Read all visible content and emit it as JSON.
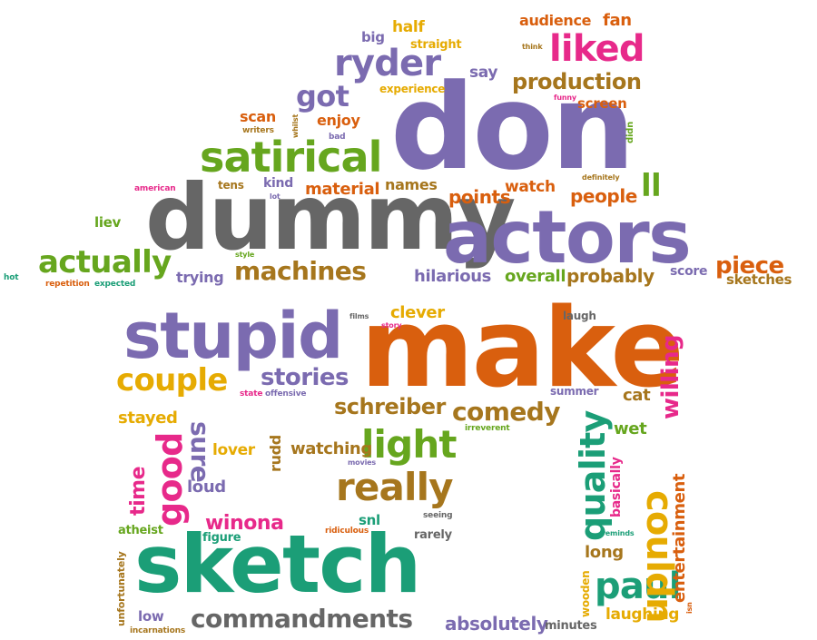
{
  "palette": {
    "purple": "#7b6bb0",
    "gray": "#666666",
    "orange": "#d95f0e",
    "green": "#66a61e",
    "teal": "#1b9e77",
    "magenta": "#e7298a",
    "gold": "#e6ab02",
    "brown": "#a6761d"
  },
  "words": [
    {
      "text": "don",
      "color": "purple"
    },
    {
      "text": "dummy",
      "color": "gray"
    },
    {
      "text": "actors",
      "color": "purple"
    },
    {
      "text": "make",
      "color": "orange"
    },
    {
      "text": "sketch",
      "color": "teal"
    },
    {
      "text": "stupid",
      "color": "purple"
    },
    {
      "text": "satirical",
      "color": "green"
    },
    {
      "text": "ryder",
      "color": "purple"
    },
    {
      "text": "liked",
      "color": "magenta"
    },
    {
      "text": "production",
      "color": "brown"
    },
    {
      "text": "got",
      "color": "purple"
    },
    {
      "text": "actually",
      "color": "green"
    },
    {
      "text": "machines",
      "color": "brown"
    },
    {
      "text": "couple",
      "color": "gold"
    },
    {
      "text": "stories",
      "color": "purple"
    },
    {
      "text": "schreiber",
      "color": "brown"
    },
    {
      "text": "comedy",
      "color": "brown"
    },
    {
      "text": "really",
      "color": "brown"
    },
    {
      "text": "light",
      "color": "green"
    },
    {
      "text": "commandments",
      "color": "gray"
    },
    {
      "text": "absolutely",
      "color": "purple"
    },
    {
      "text": "paul",
      "color": "teal"
    },
    {
      "text": "piece",
      "color": "orange"
    },
    {
      "text": "hilarious",
      "color": "purple"
    },
    {
      "text": "overall",
      "color": "green"
    },
    {
      "text": "probably",
      "color": "brown"
    },
    {
      "text": "people",
      "color": "orange"
    },
    {
      "text": "points",
      "color": "orange"
    },
    {
      "text": "watch",
      "color": "orange"
    },
    {
      "text": "material",
      "color": "orange"
    },
    {
      "text": "names",
      "color": "brown"
    },
    {
      "text": "enjoy",
      "color": "orange"
    },
    {
      "text": "scan",
      "color": "orange"
    },
    {
      "text": "half",
      "color": "gold"
    },
    {
      "text": "big",
      "color": "purple"
    },
    {
      "text": "straight",
      "color": "gold"
    },
    {
      "text": "audience",
      "color": "orange"
    },
    {
      "text": "fan",
      "color": "orange"
    },
    {
      "text": "say",
      "color": "purple"
    },
    {
      "text": "experience",
      "color": "gold"
    },
    {
      "text": "screen",
      "color": "orange"
    },
    {
      "text": "ll",
      "color": "green"
    },
    {
      "text": "kind",
      "color": "purple"
    },
    {
      "text": "tens",
      "color": "brown"
    },
    {
      "text": "liev",
      "color": "green"
    },
    {
      "text": "trying",
      "color": "purple"
    },
    {
      "text": "sketches",
      "color": "brown"
    },
    {
      "text": "score",
      "color": "purple"
    },
    {
      "text": "clever",
      "color": "gold"
    },
    {
      "text": "laugh",
      "color": "gray"
    },
    {
      "text": "stayed",
      "color": "gold"
    },
    {
      "text": "lover",
      "color": "gold"
    },
    {
      "text": "watching",
      "color": "brown"
    },
    {
      "text": "loud",
      "color": "purple"
    },
    {
      "text": "winona",
      "color": "magenta"
    },
    {
      "text": "snl",
      "color": "teal"
    },
    {
      "text": "rarely",
      "color": "gray"
    },
    {
      "text": "figure",
      "color": "teal"
    },
    {
      "text": "atheist",
      "color": "green"
    },
    {
      "text": "low",
      "color": "purple"
    },
    {
      "text": "long",
      "color": "brown"
    },
    {
      "text": "laughing",
      "color": "gold"
    },
    {
      "text": "minutes",
      "color": "gray"
    },
    {
      "text": "cat",
      "color": "brown"
    },
    {
      "text": "wet",
      "color": "green"
    },
    {
      "text": "summer",
      "color": "purple"
    },
    {
      "text": "hot",
      "color": "teal"
    },
    {
      "text": "repetition",
      "color": "orange"
    },
    {
      "text": "expected",
      "color": "teal"
    },
    {
      "text": "american",
      "color": "magenta"
    },
    {
      "text": "lot",
      "color": "purple"
    },
    {
      "text": "style",
      "color": "green"
    },
    {
      "text": "writers",
      "color": "brown"
    },
    {
      "text": "bad",
      "color": "purple"
    },
    {
      "text": "think",
      "color": "brown"
    },
    {
      "text": "funny",
      "color": "magenta"
    },
    {
      "text": "definitely",
      "color": "brown"
    },
    {
      "text": "state",
      "color": "magenta"
    },
    {
      "text": "offensive",
      "color": "purple"
    },
    {
      "text": "films",
      "color": "gray"
    },
    {
      "text": "story",
      "color": "magenta"
    },
    {
      "text": "irreverent",
      "color": "green"
    },
    {
      "text": "movies",
      "color": "purple"
    },
    {
      "text": "ridiculous",
      "color": "orange"
    },
    {
      "text": "seeing",
      "color": "gray"
    },
    {
      "text": "reminds",
      "color": "teal"
    },
    {
      "text": "incarnations",
      "color": "brown"
    },
    {
      "text": "isn",
      "color": "orange"
    },
    {
      "text": "good",
      "color": "magenta"
    },
    {
      "text": "time",
      "color": "magenta"
    },
    {
      "text": "sure",
      "color": "purple"
    },
    {
      "text": "rudd",
      "color": "brown"
    },
    {
      "text": "unfortunately",
      "color": "brown"
    },
    {
      "text": "quality",
      "color": "teal"
    },
    {
      "text": "couldn",
      "color": "gold"
    },
    {
      "text": "willing",
      "color": "magenta"
    },
    {
      "text": "entertainment",
      "color": "orange"
    },
    {
      "text": "basically",
      "color": "magenta"
    },
    {
      "text": "wooden",
      "color": "gold"
    },
    {
      "text": "whilst",
      "color": "brown"
    },
    {
      "text": "didn",
      "color": "green"
    }
  ]
}
